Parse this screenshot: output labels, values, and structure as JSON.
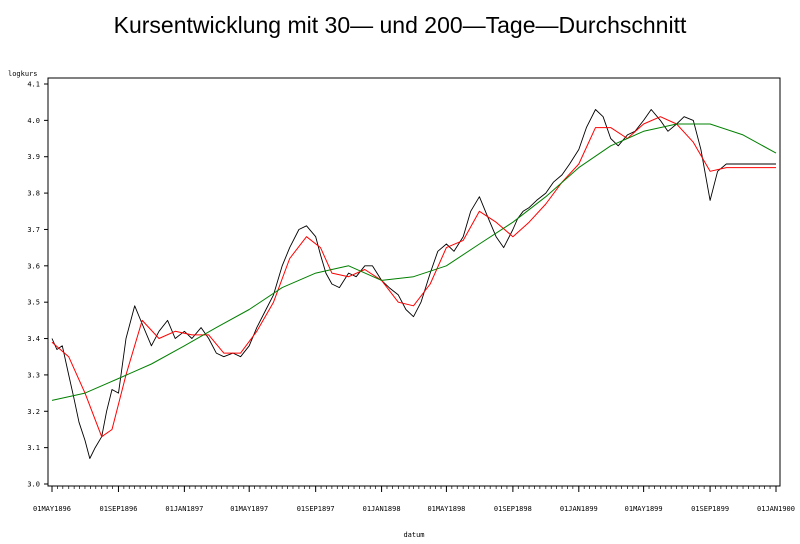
{
  "chart_data": {
    "type": "line",
    "title": "Kursentwicklung mit 30— und 200—Tage—Durchschnitt",
    "xlabel": "datum",
    "ylabel": "logkurs",
    "ylim": [
      3.0,
      4.1
    ],
    "yticks": [
      "3.0",
      "3.1",
      "3.2",
      "3.3",
      "3.4",
      "3.5",
      "3.6",
      "3.7",
      "3.8",
      "3.9",
      "4.0",
      "4.1"
    ],
    "xticks": [
      "01MAY1896",
      "01SEP1896",
      "01JAN1897",
      "01MAY1897",
      "01SEP1897",
      "01JAN1898",
      "01MAY1898",
      "01SEP1898",
      "01JAN1899",
      "01MAY1899",
      "01SEP1899",
      "01JAN1900"
    ],
    "grid": false,
    "series": [
      {
        "color": "#000000",
        "x": [
          "1896-05-01",
          "1896-05-10",
          "1896-05-20",
          "1896-06-01",
          "1896-06-10",
          "1896-06-20",
          "1896-07-01",
          "1896-07-10",
          "1896-07-20",
          "1896-08-01",
          "1896-08-10",
          "1896-08-20",
          "1896-09-01",
          "1896-09-15",
          "1896-10-01",
          "1896-10-15",
          "1896-11-01",
          "1896-11-15",
          "1896-12-01",
          "1896-12-15",
          "1897-01-01",
          "1897-01-15",
          "1897-02-01",
          "1897-02-15",
          "1897-03-01",
          "1897-03-15",
          "1897-04-01",
          "1897-04-15",
          "1897-05-01",
          "1897-05-15",
          "1897-06-01",
          "1897-06-15",
          "1897-07-01",
          "1897-07-15",
          "1897-08-01",
          "1897-08-15",
          "1897-09-01",
          "1897-09-10",
          "1897-09-20",
          "1897-10-01",
          "1897-10-15",
          "1897-11-01",
          "1897-11-15",
          "1897-12-01",
          "1897-12-15",
          "1898-01-01",
          "1898-01-15",
          "1898-02-01",
          "1898-02-15",
          "1898-03-01",
          "1898-03-15",
          "1898-04-01",
          "1898-04-15",
          "1898-05-01",
          "1898-05-15",
          "1898-06-01",
          "1898-06-15",
          "1898-07-01",
          "1898-07-15",
          "1898-08-01",
          "1898-08-15",
          "1898-09-01",
          "1898-09-10",
          "1898-09-20",
          "1898-10-01",
          "1898-10-15",
          "1898-11-01",
          "1898-11-15",
          "1898-12-01",
          "1898-12-15",
          "1899-01-01",
          "1899-01-15",
          "1899-02-01",
          "1899-02-15",
          "1899-03-01",
          "1899-03-15",
          "1899-04-01",
          "1899-04-15",
          "1899-05-01",
          "1899-05-15",
          "1899-06-01",
          "1899-06-15",
          "1899-07-01",
          "1899-07-15",
          "1899-08-01",
          "1899-08-15",
          "1899-09-01",
          "1899-09-15",
          "1899-10-01",
          "1899-10-15",
          "1899-11-01",
          "1899-11-15",
          "1899-12-01",
          "1899-12-10",
          "1899-12-20",
          "1900-01-01"
        ],
        "values": [
          3.4,
          3.37,
          3.38,
          3.3,
          3.24,
          3.17,
          3.12,
          3.07,
          3.1,
          3.13,
          3.2,
          3.26,
          3.25,
          3.4,
          3.49,
          3.44,
          3.38,
          3.42,
          3.45,
          3.4,
          3.42,
          3.4,
          3.43,
          3.4,
          3.36,
          3.35,
          3.36,
          3.35,
          3.38,
          3.43,
          3.48,
          3.52,
          3.6,
          3.65,
          3.7,
          3.71,
          3.68,
          3.63,
          3.58,
          3.55,
          3.54,
          3.58,
          3.57,
          3.6,
          3.6,
          3.56,
          3.54,
          3.52,
          3.48,
          3.46,
          3.5,
          3.58,
          3.64,
          3.66,
          3.64,
          3.68,
          3.75,
          3.79,
          3.74,
          3.68,
          3.65,
          3.7,
          3.73,
          3.75,
          3.76,
          3.78,
          3.8,
          3.83,
          3.85,
          3.88,
          3.92,
          3.98,
          4.03,
          4.01,
          3.95,
          3.93,
          3.96,
          3.97,
          4.0,
          4.03,
          4.0,
          3.97,
          3.99,
          4.01,
          4.0,
          3.92,
          3.78,
          3.86,
          3.88,
          3.88,
          3.88,
          3.88,
          3.88,
          3.88,
          3.88,
          3.88
        ],
        "values_note_removed": true
      },
      {
        "color": "#ff0000",
        "x": [
          "1896-05-01",
          "1896-06-01",
          "1896-07-01",
          "1896-08-01",
          "1896-08-20",
          "1896-09-15",
          "1896-10-15",
          "1896-11-15",
          "1896-12-15",
          "1897-01-15",
          "1897-02-15",
          "1897-03-15",
          "1897-04-15",
          "1897-05-15",
          "1897-06-15",
          "1897-07-15",
          "1897-08-15",
          "1897-09-10",
          "1897-10-01",
          "1897-11-01",
          "1897-12-01",
          "1898-01-01",
          "1898-02-01",
          "1898-03-01",
          "1898-04-01",
          "1898-05-01",
          "1898-06-01",
          "1898-07-01",
          "1898-08-01",
          "1898-09-01",
          "1898-10-01",
          "1898-11-01",
          "1898-12-01",
          "1899-01-01",
          "1899-02-01",
          "1899-03-01",
          "1899-04-01",
          "1899-05-01",
          "1899-06-01",
          "1899-07-01",
          "1899-08-01",
          "1899-09-01",
          "1899-10-01",
          "1899-11-01",
          "1899-12-01",
          "1900-01-01"
        ],
        "values": [
          3.39,
          3.35,
          3.25,
          3.13,
          3.15,
          3.3,
          3.45,
          3.4,
          3.42,
          3.41,
          3.41,
          3.36,
          3.36,
          3.42,
          3.5,
          3.62,
          3.68,
          3.65,
          3.58,
          3.57,
          3.59,
          3.56,
          3.5,
          3.49,
          3.55,
          3.65,
          3.67,
          3.75,
          3.72,
          3.68,
          3.72,
          3.77,
          3.83,
          3.88,
          3.98,
          3.98,
          3.95,
          3.99,
          4.01,
          3.99,
          3.94,
          3.86,
          3.87,
          3.87,
          3.87,
          3.87
        ]
      },
      {
        "color": "#008000",
        "x": [
          "1896-05-01",
          "1896-07-01",
          "1896-09-01",
          "1896-11-01",
          "1897-01-01",
          "1897-03-01",
          "1897-05-01",
          "1897-07-01",
          "1897-09-01",
          "1897-11-01",
          "1898-01-01",
          "1898-03-01",
          "1898-05-01",
          "1898-07-01",
          "1898-09-01",
          "1898-11-01",
          "1899-01-01",
          "1899-03-01",
          "1899-05-01",
          "1899-07-01",
          "1899-09-01",
          "1899-11-01",
          "1900-01-01"
        ],
        "values": [
          3.23,
          3.25,
          3.29,
          3.33,
          3.38,
          3.43,
          3.48,
          3.54,
          3.58,
          3.6,
          3.56,
          3.57,
          3.6,
          3.66,
          3.72,
          3.79,
          3.87,
          3.93,
          3.97,
          3.99,
          3.99,
          3.96,
          3.91
        ]
      }
    ]
  }
}
